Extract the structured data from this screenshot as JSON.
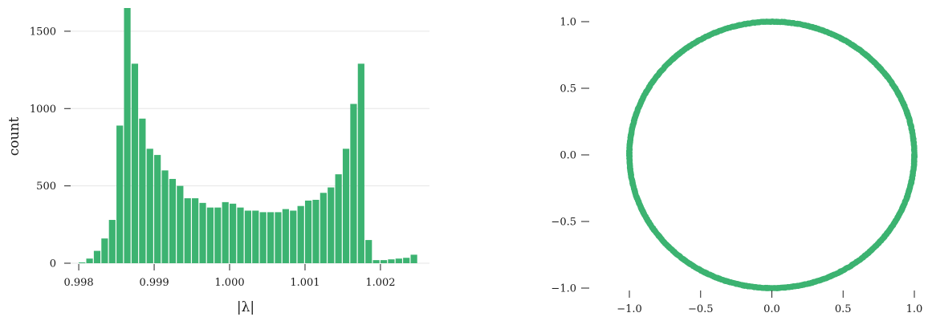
{
  "colors": {
    "accent": "#3cb371",
    "grid": "#e6e6e6"
  },
  "chart_data": [
    {
      "type": "bar",
      "xlabel": "|λ|",
      "ylabel": "count",
      "xlim": [
        0.99785,
        1.00265
      ],
      "ylim": [
        0,
        1650
      ],
      "xticks": [
        "0.998",
        "0.999",
        "1.000",
        "1.001",
        "1.002"
      ],
      "yticks": [
        "0",
        "500",
        "1000",
        "1500"
      ],
      "grid": true,
      "bin_width": 0.0001,
      "bin_starts": [
        0.998,
        0.9981,
        0.9982,
        0.9983,
        0.9984,
        0.9985,
        0.9986,
        0.9987,
        0.9988,
        0.9989,
        0.999,
        0.9991,
        0.9992,
        0.9993,
        0.9994,
        0.9995,
        0.9996,
        0.9997,
        0.9998,
        0.9999,
        1.0,
        1.0001,
        1.0002,
        1.0003,
        1.0004,
        1.0005,
        1.0006,
        1.0007,
        1.0008,
        1.0009,
        1.001,
        1.0011,
        1.0012,
        1.0013,
        1.0014,
        1.0015,
        1.0016,
        1.0017,
        1.0018,
        1.0019,
        1.002,
        1.0021,
        1.0022,
        1.0023,
        1.0024
      ],
      "values": [
        5,
        30,
        80,
        160,
        280,
        890,
        1650,
        1290,
        935,
        740,
        700,
        600,
        545,
        500,
        420,
        420,
        390,
        360,
        360,
        395,
        385,
        360,
        340,
        340,
        330,
        330,
        330,
        350,
        340,
        370,
        405,
        410,
        455,
        490,
        575,
        740,
        1030,
        1290,
        150,
        20,
        20,
        25,
        30,
        35,
        55
      ]
    },
    {
      "type": "scatter",
      "description_shape": "ring of points on the unit circle",
      "xlim": [
        -1.0,
        1.0
      ],
      "ylim": [
        -1.0,
        1.0
      ],
      "xticks": [
        "−1.0",
        "−0.5",
        "0.0",
        "0.5",
        "1.0"
      ],
      "yticks": [
        "−1.0",
        "−0.5",
        "0.0",
        "0.5",
        "1.0"
      ],
      "radius": 1.0,
      "radial_spread": 0.0025
    }
  ]
}
